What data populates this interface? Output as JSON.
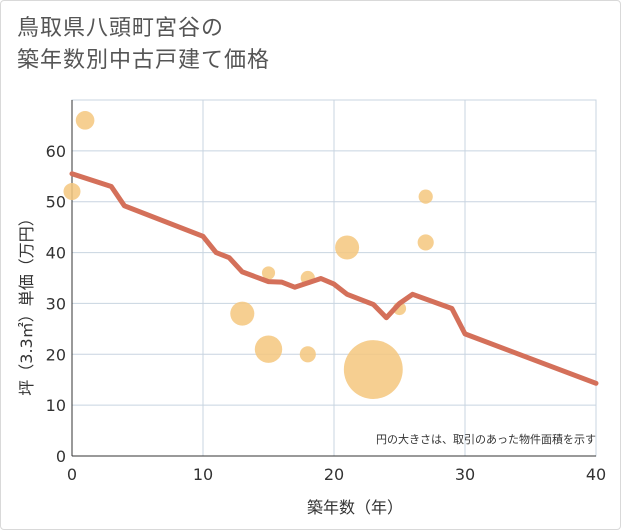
{
  "title_lines": [
    "鳥取県八頭町宮谷の",
    "築年数別中古戸建て価格"
  ],
  "chart_data": {
    "type": "scatter",
    "title": "鳥取県八頭町宮谷の築年数別中古戸建て価格",
    "xlabel": "築年数（年）",
    "ylabel": "坪（3.3㎡）単価（万円）",
    "xlim": [
      0,
      40
    ],
    "ylim": [
      0,
      70
    ],
    "x_ticks": [
      0,
      10,
      20,
      30,
      40
    ],
    "y_ticks": [
      0,
      10,
      20,
      30,
      40,
      50,
      60
    ],
    "grid": true,
    "note": "円の大きさは、取引のあった物件面積を示す",
    "colors": {
      "bubble": "#f5c77e",
      "line": "#d4705a",
      "grid": "#c8d4e0"
    },
    "series": [
      {
        "type": "bubble",
        "points": [
          {
            "x": 0,
            "y": 52,
            "size": 1
          },
          {
            "x": 1,
            "y": 66,
            "size": 1.2
          },
          {
            "x": 13,
            "y": 28,
            "size": 2
          },
          {
            "x": 15,
            "y": 21,
            "size": 2.6
          },
          {
            "x": 15,
            "y": 36,
            "size": 0.6
          },
          {
            "x": 18,
            "y": 35,
            "size": 0.7
          },
          {
            "x": 18,
            "y": 20,
            "size": 0.9
          },
          {
            "x": 21,
            "y": 41,
            "size": 2
          },
          {
            "x": 23,
            "y": 17,
            "size": 12
          },
          {
            "x": 25,
            "y": 29,
            "size": 0.6
          },
          {
            "x": 27,
            "y": 51,
            "size": 0.7
          },
          {
            "x": 27,
            "y": 42,
            "size": 0.9
          }
        ]
      },
      {
        "type": "line",
        "points": [
          {
            "x": 0,
            "y": 55.5
          },
          {
            "x": 3,
            "y": 53
          },
          {
            "x": 4,
            "y": 49.2
          },
          {
            "x": 10,
            "y": 43.2
          },
          {
            "x": 11,
            "y": 40
          },
          {
            "x": 12,
            "y": 39
          },
          {
            "x": 13,
            "y": 36.2
          },
          {
            "x": 15,
            "y": 34.3
          },
          {
            "x": 16,
            "y": 34.2
          },
          {
            "x": 17,
            "y": 33.2
          },
          {
            "x": 19,
            "y": 34.9
          },
          {
            "x": 20,
            "y": 33.8
          },
          {
            "x": 21,
            "y": 31.8
          },
          {
            "x": 23,
            "y": 29.8
          },
          {
            "x": 24,
            "y": 27.2
          },
          {
            "x": 25,
            "y": 30
          },
          {
            "x": 26,
            "y": 31.8
          },
          {
            "x": 29,
            "y": 29
          },
          {
            "x": 30,
            "y": 24
          },
          {
            "x": 40,
            "y": 14.3
          }
        ]
      }
    ]
  }
}
